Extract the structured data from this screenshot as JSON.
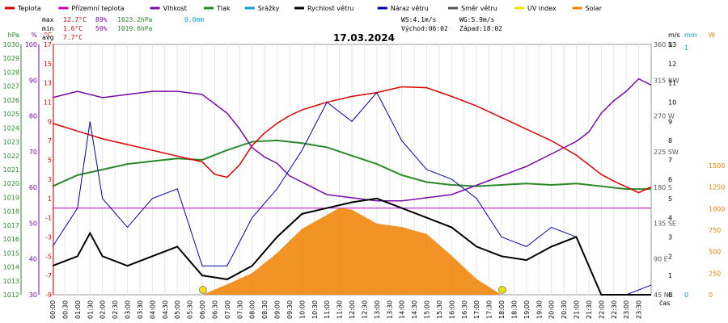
{
  "chart_data": {
    "type": "line",
    "title": "17.03.2024",
    "x_unit_label": "čas",
    "x_ticks": [
      "00:00",
      "00:30",
      "01:00",
      "01:30",
      "02:00",
      "02:30",
      "03:00",
      "03:30",
      "04:00",
      "04:30",
      "05:00",
      "05:30",
      "06:00",
      "06:30",
      "07:00",
      "07:30",
      "08:00",
      "08:30",
      "09:00",
      "09:30",
      "10:00",
      "10:30",
      "11:00",
      "11:30",
      "12:00",
      "12:30",
      "13:00",
      "13:30",
      "14:00",
      "14:30",
      "15:00",
      "15:30",
      "16:00",
      "16:30",
      "17:00",
      "17:30",
      "18:00",
      "18:30",
      "19:00",
      "19:30",
      "20:00",
      "20:30",
      "21:00",
      "21:30",
      "22:00",
      "22:30",
      "23:00",
      "23:30"
    ],
    "legend": [
      {
        "name": "Teplota",
        "color": "#e00000"
      },
      {
        "name": "Přízemní teplota",
        "color": "#c000c0"
      },
      {
        "name": "Vlhkost",
        "color": "#7a0aa8"
      },
      {
        "name": "Tlak",
        "color": "#2a8a2a"
      },
      {
        "name": "Srážky",
        "color": "#00a0d0"
      },
      {
        "name": "Rychlost větru",
        "color": "#000000"
      },
      {
        "name": "Náraz větru",
        "color": "#0000a0"
      },
      {
        "name": "Směr větru",
        "color": "#555555"
      },
      {
        "name": "UV index",
        "color": "#f0e000"
      },
      {
        "name": "Solar",
        "color": "#f08000"
      }
    ],
    "stats": {
      "max": {
        "label": "max",
        "temp": "12.7°C",
        "hum": "89%",
        "press": "1023.2hPa",
        "rain": "0.0mm"
      },
      "min": {
        "label": "min",
        "temp": "1.6°C",
        "hum": "50%",
        "press": "1019.6hPa"
      },
      "avg": {
        "label": "avg",
        "temp": "7.7°C"
      },
      "ws": "WS:4.1m/s",
      "wg": "WG:5.9m/s",
      "sunrise": "Východ:06:02",
      "sunset": "Západ:18:02"
    },
    "axes": {
      "hpa": {
        "label": "hPa",
        "ticks": [
          "1030",
          "1029",
          "1028",
          "1027",
          "1026",
          "1025",
          "1024",
          "1023",
          "1022",
          "1021",
          "1020",
          "1019",
          "1018",
          "1017",
          "1016",
          "1015",
          "1014",
          "1013",
          "1012"
        ]
      },
      "pct": {
        "label": "%",
        "ticks": [
          "100",
          "90",
          "80",
          "70",
          "60",
          "50",
          "40",
          "30"
        ]
      },
      "degC": {
        "label": "°C",
        "ticks": [
          "17",
          "15",
          "13",
          "11",
          "9",
          "7",
          "5",
          "3",
          "1",
          "-1",
          "-3",
          "-5",
          "-7",
          "-9"
        ]
      },
      "dir": {
        "ticks": [
          "360 N",
          "315 NW",
          "270 W",
          "225 SW",
          "180 S",
          "135 SE",
          "90 E",
          "45 NE"
        ]
      },
      "ms": {
        "label": "m/s",
        "ticks": [
          "13",
          "12",
          "11",
          "10",
          "9",
          "8",
          "7",
          "6",
          "5",
          "4",
          "3",
          "2",
          "1",
          "0"
        ]
      },
      "mm": {
        "label": "mm",
        "ticks": [
          "1",
          "0"
        ]
      },
      "wm2": {
        "label": "W",
        "ticks": [
          "1500",
          "1250",
          "1000",
          "750",
          "500",
          "250",
          "0"
        ]
      }
    },
    "series": [
      {
        "name": "Teplota",
        "unit": "°C",
        "x": [
          0,
          1,
          2,
          3,
          4,
          5,
          6,
          6.5,
          7,
          7.5,
          8,
          8.5,
          9,
          9.5,
          10,
          11,
          12,
          13,
          14,
          15,
          16,
          17,
          18,
          19,
          20,
          21,
          22,
          22.5,
          23,
          23.5,
          24
        ],
        "y": [
          8.8,
          8.0,
          7.2,
          6.6,
          6.0,
          5.4,
          4.8,
          3.5,
          3.2,
          4.5,
          6.5,
          7.8,
          8.8,
          9.6,
          10.2,
          11.0,
          11.6,
          12.0,
          12.6,
          12.5,
          11.6,
          10.6,
          9.4,
          8.2,
          7.0,
          5.5,
          3.5,
          2.8,
          2.2,
          1.6,
          2.2
        ]
      },
      {
        "name": "Vlhkost",
        "unit": "%",
        "x": [
          0,
          1,
          2,
          3,
          4,
          5,
          6,
          6.5,
          7,
          7.5,
          8,
          8.5,
          9,
          9.5,
          10,
          11,
          12,
          13,
          14,
          15,
          16,
          17,
          18,
          19,
          20,
          21,
          21.5,
          22,
          22.5,
          23,
          23.5,
          24
        ],
        "y": [
          83,
          85,
          83,
          84,
          85,
          85,
          84,
          81,
          78,
          73,
          67,
          64,
          62,
          58,
          56,
          52,
          51,
          50,
          50,
          51,
          52,
          55,
          58,
          61,
          65,
          69,
          72,
          78,
          82,
          85,
          89,
          87
        ]
      },
      {
        "name": "Tlak",
        "unit": "hPa",
        "x": [
          0,
          1,
          2,
          3,
          4,
          5,
          6,
          7,
          8,
          9,
          10,
          11,
          12,
          13,
          14,
          15,
          16,
          17,
          18,
          19,
          20,
          21,
          22,
          23,
          24
        ],
        "y": [
          1019.8,
          1020.6,
          1021.0,
          1021.4,
          1021.6,
          1021.8,
          1021.7,
          1022.4,
          1023.0,
          1023.1,
          1022.9,
          1022.6,
          1022.0,
          1021.4,
          1020.6,
          1020.1,
          1019.9,
          1019.8,
          1019.9,
          1020.0,
          1019.9,
          1020.0,
          1019.8,
          1019.6,
          1019.6
        ]
      },
      {
        "name": "Rychlost větru",
        "unit": "m/s",
        "x": [
          0,
          1,
          1.5,
          2,
          3,
          4,
          5,
          6,
          7,
          8,
          9,
          10,
          11,
          12,
          13,
          14,
          15,
          16,
          17,
          18,
          19,
          20,
          21,
          22,
          23,
          24
        ],
        "y": [
          1.5,
          2.0,
          3.2,
          2.0,
          1.5,
          2.0,
          2.5,
          1.0,
          0.8,
          1.5,
          3.0,
          4.2,
          4.5,
          4.8,
          5.0,
          4.5,
          4.0,
          3.5,
          2.5,
          2.0,
          1.8,
          2.5,
          3.0,
          0.0,
          0.0,
          0.0
        ]
      },
      {
        "name": "Náraz větru",
        "unit": "m/s",
        "x": [
          0,
          1,
          1.5,
          2,
          3,
          4,
          5,
          6,
          7,
          8,
          9,
          10,
          11,
          12,
          13,
          14,
          15,
          16,
          17,
          18,
          19,
          20,
          21,
          22,
          23,
          24
        ],
        "y": [
          2.5,
          4.5,
          9.0,
          5.0,
          3.5,
          5.0,
          5.5,
          1.5,
          1.5,
          4.0,
          5.5,
          7.5,
          10.0,
          9.0,
          10.5,
          8.0,
          6.5,
          6.0,
          5.0,
          3.0,
          2.5,
          3.5,
          3.0,
          0.0,
          0.0,
          0.5
        ]
      },
      {
        "name": "Solar",
        "unit": "W/m2",
        "x": [
          6,
          7,
          8,
          9,
          10,
          11,
          11.5,
          12,
          12.5,
          13,
          14,
          15,
          16,
          17,
          18
        ],
        "y": [
          0,
          120,
          250,
          480,
          760,
          920,
          1000,
          980,
          900,
          820,
          780,
          700,
          450,
          180,
          0
        ]
      }
    ]
  }
}
